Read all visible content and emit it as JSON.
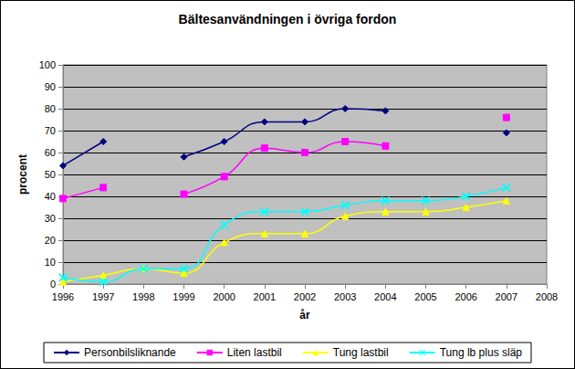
{
  "chart_data": {
    "type": "line",
    "title": "Bältesanvändningen i övriga fordon",
    "x_label": "år",
    "y_label": "procent",
    "x": [
      1996,
      1997,
      1998,
      1999,
      2000,
      2001,
      2002,
      2003,
      2004,
      2005,
      2006,
      2007
    ],
    "series": [
      {
        "name": "Personbilsliknande",
        "color": "#000080",
        "marker": "diamond",
        "values": [
          54,
          65,
          null,
          58,
          65,
          74,
          74,
          80,
          79,
          null,
          null,
          69
        ]
      },
      {
        "name": "Liten lastbil",
        "color": "#ff00ff",
        "marker": "square",
        "values": [
          39,
          44,
          null,
          41,
          49,
          62,
          60,
          65,
          63,
          null,
          null,
          76
        ]
      },
      {
        "name": "Tung lastbil",
        "color": "#ffff00",
        "marker": "triangle",
        "values": [
          1,
          4,
          7,
          5,
          19,
          23,
          23,
          31,
          33,
          33,
          35,
          38
        ]
      },
      {
        "name": "Tung lb plus släp",
        "color": "#00ffff",
        "marker": "x",
        "values": [
          3,
          1,
          7,
          7,
          27,
          33,
          33,
          36,
          38,
          38,
          40,
          44
        ]
      }
    ],
    "xlim": [
      1996,
      2008
    ],
    "xticks": [
      1996,
      1997,
      1998,
      1999,
      2000,
      2001,
      2002,
      2003,
      2004,
      2005,
      2006,
      2007,
      2008
    ],
    "ylim": [
      0,
      100
    ],
    "yticks": [
      0,
      10,
      20,
      30,
      40,
      50,
      60,
      70,
      80,
      90,
      100
    ],
    "grid": true,
    "legend": "bottom",
    "line_style": "smooth"
  }
}
